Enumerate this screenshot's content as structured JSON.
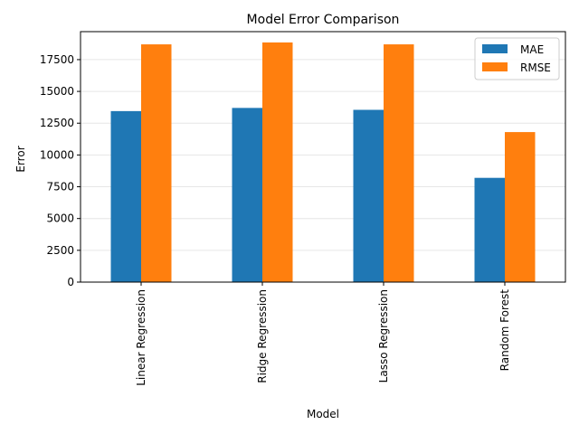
{
  "chart_data": {
    "type": "bar",
    "title": "Model Error Comparison",
    "xlabel": "Model",
    "ylabel": "Error",
    "categories": [
      "Linear Regression",
      "Ridge Regression",
      "Lasso Regression",
      "Random Forest"
    ],
    "series": [
      {
        "name": "MAE",
        "values": [
          13450,
          13700,
          13550,
          8200
        ],
        "color": "#1f77b4"
      },
      {
        "name": "RMSE",
        "values": [
          18700,
          18850,
          18700,
          11800
        ],
        "color": "#ff7f0e"
      }
    ],
    "ylim": [
      0,
      19700
    ],
    "yticks": [
      0,
      2500,
      5000,
      7500,
      10000,
      12500,
      15000,
      17500
    ],
    "ytick_labels": [
      "0",
      "2500",
      "5000",
      "7500",
      "10000",
      "12500",
      "15000",
      "17500"
    ],
    "grid": "horizontal",
    "legend_position": "upper right"
  }
}
